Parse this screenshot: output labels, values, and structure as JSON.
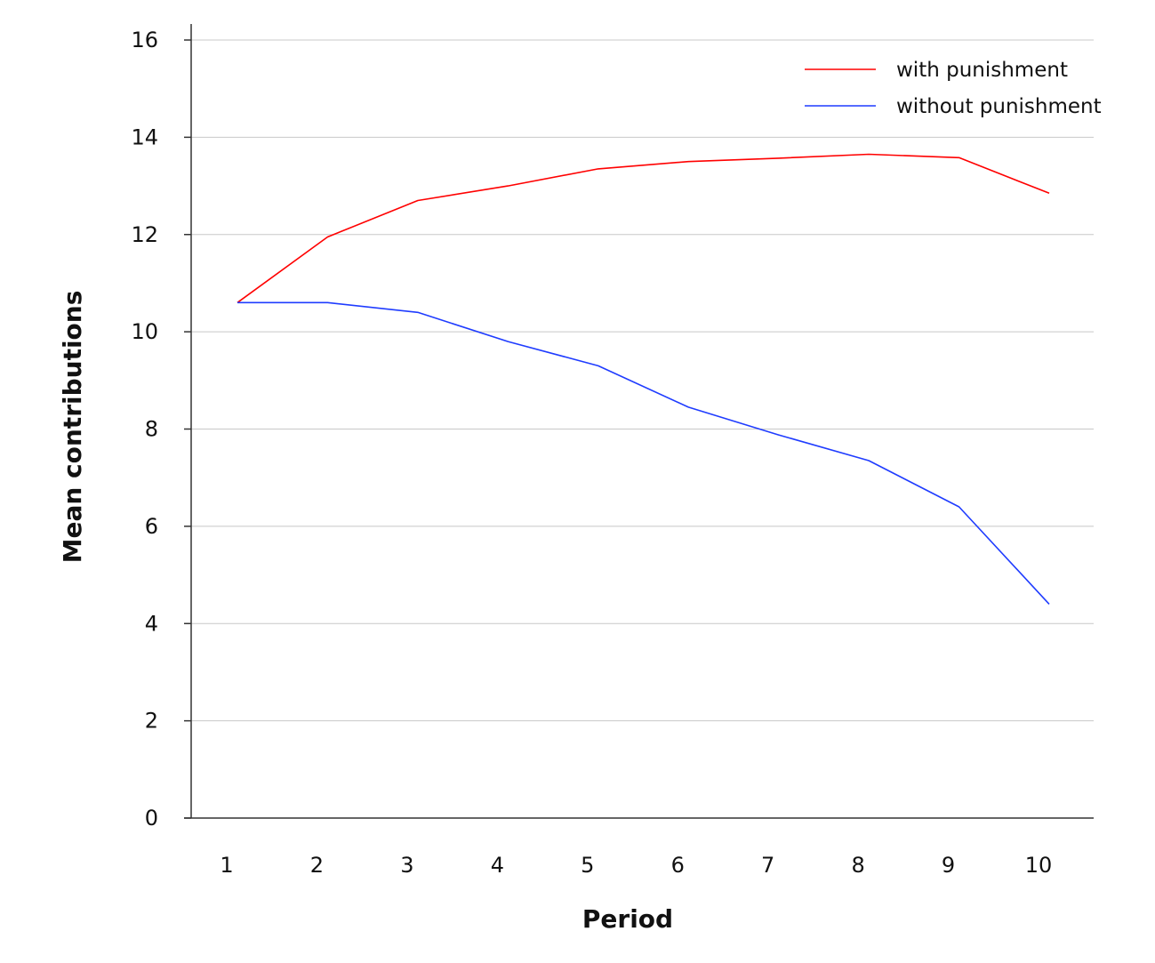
{
  "chart_data": {
    "type": "line",
    "title": "",
    "xlabel": "Period",
    "ylabel": "Mean contributions",
    "x": [
      1,
      2,
      3,
      4,
      5,
      6,
      7,
      8,
      9,
      10
    ],
    "ylim": [
      0,
      16
    ],
    "yticks": [
      0,
      2,
      4,
      6,
      8,
      10,
      12,
      14,
      16
    ],
    "grid": true,
    "legend_position": "top-right",
    "series": [
      {
        "name": "with punishment",
        "color": "#ff0000",
        "values": [
          10.6,
          11.95,
          12.7,
          13.0,
          13.35,
          13.5,
          13.57,
          13.65,
          13.58,
          12.85
        ]
      },
      {
        "name": "without punishment",
        "color": "#1f3cff",
        "values": [
          10.6,
          10.6,
          10.4,
          9.8,
          9.3,
          8.45,
          7.88,
          7.35,
          6.4,
          4.4
        ]
      }
    ]
  }
}
